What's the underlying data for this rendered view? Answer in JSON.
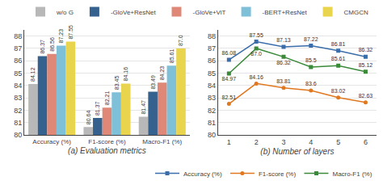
{
  "chart_data": [
    {
      "type": "bar",
      "categories": [
        "Accuracy (%)",
        "F1-score (%)",
        "Macro-F1 (%)"
      ],
      "series": [
        {
          "name": "w/o G",
          "color": "#b8b8b8",
          "values": [
            84.12,
            80.64,
            81.47
          ]
        },
        {
          "name": "-GloVe+ResNet",
          "color": "#35618e",
          "values": [
            86.37,
            81.37,
            83.49
          ]
        },
        {
          "name": "-GloVe+ViT",
          "color": "#e08878",
          "values": [
            86.56,
            82.21,
            84.23
          ]
        },
        {
          "name": "-BERT+ResNet",
          "color": "#7ec0d8",
          "values": [
            87.23,
            83.45,
            85.61
          ]
        },
        {
          "name": "CMGCN",
          "color": "#e8d44d",
          "values": [
            87.55,
            84.16,
            87.0
          ],
          "value_labels": [
            "87.55",
            "84.16",
            "87.0"
          ]
        }
      ],
      "xlabel": "(a) Evaluation metrics",
      "ylim": [
        80.0,
        88.5
      ],
      "yticks": [
        80,
        81,
        82,
        83,
        84,
        85,
        86,
        87,
        88
      ],
      "grid": true,
      "legend": "top",
      "data_labels": true
    },
    {
      "type": "line",
      "x": [
        1,
        2,
        3,
        4,
        5,
        6
      ],
      "xlim": [
        0.6,
        6.4
      ],
      "xticks": [
        1,
        2,
        3,
        4,
        5,
        6
      ],
      "series": [
        {
          "name": "Accuracy (%)",
          "color": "#3a6daa",
          "marker": "square",
          "values": [
            86.08,
            87.55,
            87.13,
            87.22,
            86.81,
            86.32
          ]
        },
        {
          "name": "F1-score (%)",
          "color": "#e07820",
          "marker": "circle",
          "values": [
            82.51,
            84.16,
            83.81,
            83.6,
            83.02,
            82.63
          ]
        },
        {
          "name": "Macro-F1 (%)",
          "color": "#3a8a3a",
          "marker": "square",
          "values": [
            84.97,
            87.0,
            86.32,
            85.5,
            85.61,
            85.12
          ],
          "value_labels": [
            "84.97",
            "87.0",
            "86.32",
            "85.5",
            "85.61",
            "85.12"
          ]
        }
      ],
      "xlabel": "(b) Number of layers",
      "ylim": [
        80.0,
        88.5
      ],
      "yticks": [
        80,
        81,
        82,
        83,
        84,
        85,
        86,
        87,
        88
      ],
      "grid": true,
      "legend": "bottom",
      "data_labels": true
    }
  ]
}
